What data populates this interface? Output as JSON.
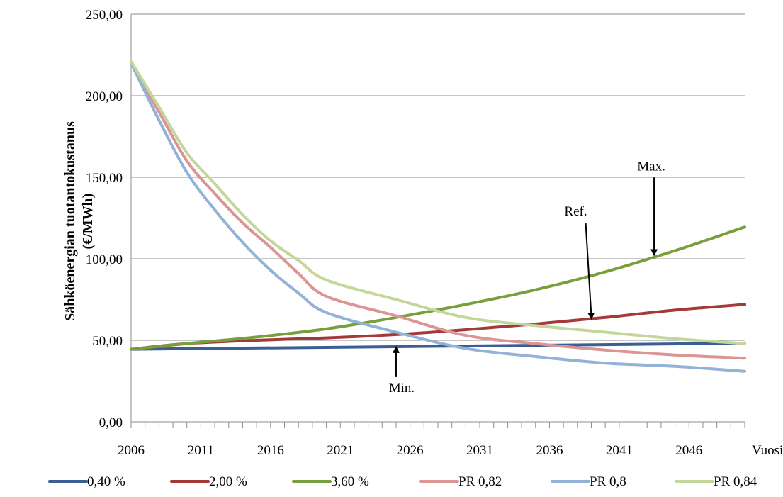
{
  "chart_data": {
    "type": "line",
    "ylabel_line1": "Sähköenergian tuotantokustanus",
    "ylabel_line2": "(€/MWh)",
    "xlabel": "Vuosi",
    "ylim": [
      0,
      250
    ],
    "y_ticks": [
      "0,00",
      "50,00",
      "100,00",
      "150,00",
      "200,00",
      "250,00"
    ],
    "x_ticks": [
      "2006",
      "2011",
      "2016",
      "2021",
      "2026",
      "2031",
      "2036",
      "2041",
      "2046"
    ],
    "x_range": [
      2006,
      2050
    ],
    "grid": "horizontal",
    "legend_position": "bottom",
    "series": [
      {
        "name": "0,40 %",
        "color": "#3b5f94",
        "x": [
          2006,
          2050
        ],
        "y": [
          44.5,
          48.2
        ]
      },
      {
        "name": "2,00 %",
        "color": "#a43a38",
        "x": [
          2006,
          2010,
          2015,
          2020,
          2025,
          2030,
          2035,
          2040,
          2045,
          2050
        ],
        "y": [
          44.5,
          48.0,
          50.0,
          51.5,
          53.5,
          56.5,
          60.0,
          64.0,
          68.5,
          72.0
        ]
      },
      {
        "name": "3,60 %",
        "color": "#77a03d",
        "x": [
          2006,
          2010,
          2015,
          2020,
          2025,
          2030,
          2035,
          2040,
          2045,
          2050
        ],
        "y": [
          44.5,
          48.0,
          52.0,
          57.0,
          64.0,
          72.0,
          81.0,
          92.0,
          105.0,
          119.5
        ]
      },
      {
        "name": "PR 0,82",
        "color": "#dc9494",
        "x": [
          2006,
          2008,
          2010,
          2012,
          2014,
          2016,
          2018,
          2020,
          2025,
          2030,
          2035,
          2040,
          2045,
          2050
        ],
        "y": [
          220,
          190,
          160,
          140,
          122,
          107,
          91,
          77,
          65,
          53,
          48,
          44,
          41,
          39
        ]
      },
      {
        "name": "PR 0,8",
        "color": "#92b2d8",
        "x": [
          2006,
          2008,
          2010,
          2012,
          2014,
          2016,
          2018,
          2020,
          2025,
          2030,
          2035,
          2040,
          2045,
          2050
        ],
        "y": [
          220,
          185,
          153,
          130,
          110,
          93,
          79,
          67,
          55,
          45,
          40,
          36,
          34,
          31
        ]
      },
      {
        "name": "PR 0,84",
        "color": "#c3d79a",
        "x": [
          2006,
          2008,
          2010,
          2012,
          2014,
          2016,
          2018,
          2020,
          2025,
          2030,
          2035,
          2040,
          2045,
          2050
        ],
        "y": [
          221,
          193,
          165,
          146,
          127,
          111,
          99,
          87,
          75,
          64,
          59,
          55,
          51,
          48
        ]
      }
    ],
    "annotations": [
      {
        "text": "Ref.",
        "x": 2039,
        "y": 63
      },
      {
        "text": "Max.",
        "x": 2043.5,
        "y": 102
      },
      {
        "text": "Min.",
        "x": 2025,
        "y": 47
      }
    ]
  }
}
